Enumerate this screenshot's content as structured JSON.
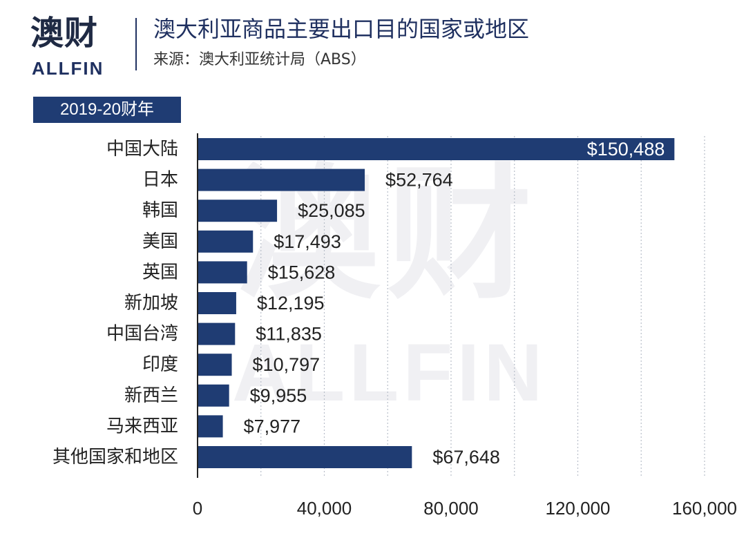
{
  "brand": {
    "name_cn": "澳财",
    "name_en": "ALLFIN",
    "watermark_cn": "澳财",
    "watermark_en": "ALLFIN"
  },
  "header": {
    "title": "澳大利亚商品主要出口目的国家或地区",
    "source": "来源：澳大利亚统计局（ABS）"
  },
  "period": "2019-20财年",
  "colors": {
    "bar": "#1f3c73",
    "grid": "#b8bec9",
    "axis": "#222222",
    "brand_red": "#c0182c",
    "brand_navy": "#1f3060"
  },
  "chart_data": {
    "type": "bar",
    "orientation": "horizontal",
    "categories": [
      "中国大陆",
      "日本",
      "韩国",
      "美国",
      "英国",
      "新加坡",
      "中国台湾",
      "印度",
      "新西兰",
      "马来西亚",
      "其他国家和地区"
    ],
    "values": [
      150488,
      52764,
      25085,
      17493,
      15628,
      12195,
      11835,
      10797,
      9955,
      7977,
      67648
    ],
    "value_labels": [
      "$150,488",
      "$52,764",
      "$25,085",
      "$17,493",
      "$15,628",
      "$12,195",
      "$11,835",
      "$10,797",
      "$9,955",
      "$7,977",
      "$67,648"
    ],
    "xlim": [
      0,
      160000
    ],
    "xticks": [
      0,
      40000,
      80000,
      120000,
      160000
    ],
    "xtick_labels": [
      "0",
      "40,000",
      "80,000",
      "120,000",
      "160,000"
    ],
    "grid": "vertical dotted",
    "legend": "none"
  }
}
